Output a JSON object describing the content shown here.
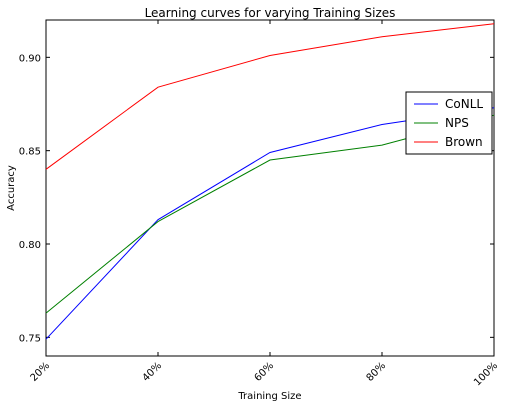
{
  "chart_data": {
    "type": "line",
    "title": "Learning curves for varying Training Sizes",
    "xlabel": "Training Size",
    "ylabel": "Accuracy",
    "categories": [
      "20%",
      "40%",
      "60%",
      "80%",
      "100%"
    ],
    "y_ticks": [
      0.75,
      0.8,
      0.85,
      0.9
    ],
    "y_tick_labels": [
      "0.75",
      "0.80",
      "0.85",
      "0.90"
    ],
    "ylim": [
      0.74,
      0.92
    ],
    "grid": false,
    "legend_position": "right",
    "series": [
      {
        "name": "CoNLL",
        "color": "#0000ff",
        "values": [
          0.749,
          0.813,
          0.849,
          0.864,
          0.873
        ]
      },
      {
        "name": "NPS",
        "color": "#008000",
        "values": [
          0.763,
          0.812,
          0.845,
          0.853,
          0.869
        ]
      },
      {
        "name": "Brown",
        "color": "#ff0000",
        "values": [
          0.84,
          0.884,
          0.901,
          0.911,
          0.918
        ]
      }
    ]
  }
}
